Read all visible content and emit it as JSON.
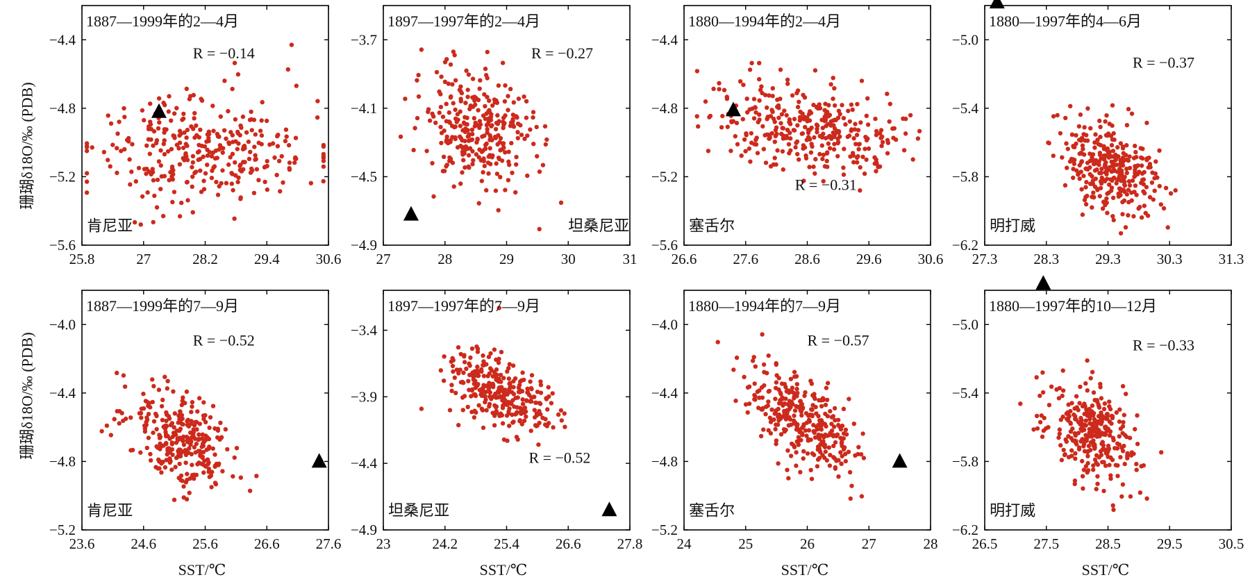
{
  "figure": {
    "ylabel_row1": "珊瑚δ18O/‰ (PDB)",
    "ylabel_row2": "珊瑚δ18O/‰ (PDB)",
    "xlabels": [
      "SST/℃",
      "SST/℃",
      "SST/℃",
      "SST/℃"
    ],
    "colors": {
      "points": "#cc2a1c",
      "marker": "#000000",
      "axes": "#000000"
    }
  },
  "chart_data": [
    {
      "type": "scatter",
      "period": "1887—1999年的2—4月",
      "site": "肯尼亚",
      "r": "R = −0.14",
      "xlim": [
        25.8,
        30.6
      ],
      "ylim": [
        -5.6,
        -4.2
      ],
      "xticks": [
        "25.8",
        "27",
        "28.2",
        "29.4",
        "30.6"
      ],
      "yticks": [
        "-4.4",
        "-4.8",
        "-5.2",
        "-5.6"
      ],
      "center": [
        28.2,
        -5.05
      ],
      "spread": [
        1.1,
        0.18
      ],
      "tilt": -0.1,
      "n": 320,
      "seed": 11,
      "triangle": {
        "x": 27.3,
        "y": -4.82
      }
    },
    {
      "type": "scatter",
      "period": "1897—1997年的2—4月",
      "site": "坦桑尼亚",
      "r": "R = −0.27",
      "xlim": [
        27,
        31
      ],
      "ylim": [
        -4.9,
        -3.5
      ],
      "xticks": [
        "27",
        "28",
        "29",
        "30",
        "31"
      ],
      "yticks": [
        "-3.7",
        "-4.1",
        "-4.5",
        "-4.9"
      ],
      "center": [
        28.5,
        -4.2
      ],
      "spread": [
        0.45,
        0.17
      ],
      "tilt": -0.25,
      "n": 300,
      "seed": 23,
      "triangle": {
        "x": 27.45,
        "y": -4.72
      }
    },
    {
      "type": "scatter",
      "period": "1880—1994年的2—4月",
      "site": "塞舌尔",
      "r": "R = −0.31",
      "xlim": [
        26.6,
        30.6
      ],
      "ylim": [
        -5.6,
        -4.2
      ],
      "xticks": [
        "26.6",
        "27.6",
        "28.6",
        "29.6",
        "30.6"
      ],
      "yticks": [
        "-4.4",
        "-4.8",
        "-5.2",
        "-5.6"
      ],
      "center": [
        28.6,
        -4.9
      ],
      "spread": [
        0.75,
        0.13
      ],
      "tilt": -0.3,
      "n": 340,
      "seed": 37,
      "triangle": {
        "x": 27.4,
        "y": -4.81
      }
    },
    {
      "type": "scatter",
      "period": "1880—1997年的4—6月",
      "site": "明打威",
      "r": "R = −0.37",
      "xlim": [
        27.3,
        31.3
      ],
      "ylim": [
        -6.2,
        -4.8
      ],
      "xticks": [
        "27.3",
        "28.3",
        "29.3",
        "30.3",
        "31.3"
      ],
      "yticks": [
        "-5.0",
        "-5.4",
        "-5.8",
        "-6.2"
      ],
      "center": [
        29.35,
        -5.75
      ],
      "spread": [
        0.4,
        0.14
      ],
      "tilt": -0.35,
      "n": 320,
      "seed": 41,
      "triangle": {
        "x": 27.5,
        "y": -4.78
      }
    },
    {
      "type": "scatter",
      "period": "1887—1999年的7—9月",
      "site": "肯尼亚",
      "r": "R = −0.52",
      "xlim": [
        23.6,
        27.6
      ],
      "ylim": [
        -5.2,
        -3.8
      ],
      "xticks": [
        "23.6",
        "24.6",
        "25.6",
        "26.6",
        "27.6"
      ],
      "yticks": [
        "-4.0",
        "-4.4",
        "-4.8",
        "-5.2"
      ],
      "center": [
        25.2,
        -4.67
      ],
      "spread": [
        0.45,
        0.14
      ],
      "tilt": -0.52,
      "n": 300,
      "seed": 53,
      "triangle": {
        "x": 27.45,
        "y": -4.8
      }
    },
    {
      "type": "scatter",
      "period": "1897—1997年的7—9月",
      "site": "坦桑尼亚",
      "r": "R = −0.52",
      "xlim": [
        23,
        27.8
      ],
      "ylim": [
        -4.9,
        -3.1
      ],
      "xticks": [
        "23",
        "24.2",
        "25.4",
        "26.6",
        "27.8"
      ],
      "yticks": [
        "-3.4",
        "-3.9",
        "-4.4",
        "-4.9"
      ],
      "center": [
        25.2,
        -3.85
      ],
      "spread": [
        0.5,
        0.15
      ],
      "tilt": -0.52,
      "n": 300,
      "seed": 67,
      "triangle": {
        "x": 27.4,
        "y": -4.75
      }
    },
    {
      "type": "scatter",
      "period": "1880—1994年的7—9月",
      "site": "塞舌尔",
      "r": "R = −0.57",
      "xlim": [
        24,
        28
      ],
      "ylim": [
        -5.2,
        -3.8
      ],
      "xticks": [
        "24",
        "25",
        "26",
        "27",
        "28"
      ],
      "yticks": [
        "-4.0",
        "-4.4",
        "-4.8",
        "-5.2"
      ],
      "center": [
        25.95,
        -4.58
      ],
      "spread": [
        0.45,
        0.16
      ],
      "tilt": -0.57,
      "n": 320,
      "seed": 79,
      "triangle": {
        "x": 27.5,
        "y": -4.8
      }
    },
    {
      "type": "scatter",
      "period": "1880—1997年的10—12月",
      "site": "明打威",
      "r": "R = −0.33",
      "xlim": [
        26.5,
        30.5
      ],
      "ylim": [
        -6.2,
        -4.8
      ],
      "xticks": [
        "26.5",
        "27.5",
        "28.5",
        "29.5",
        "30.5"
      ],
      "yticks": [
        "-5.0",
        "-5.4",
        "-5.8",
        "-6.2"
      ],
      "center": [
        28.2,
        -5.63
      ],
      "spread": [
        0.38,
        0.15
      ],
      "tilt": -0.33,
      "n": 320,
      "seed": 97,
      "triangle": {
        "x": 27.45,
        "y": -4.76
      }
    }
  ]
}
